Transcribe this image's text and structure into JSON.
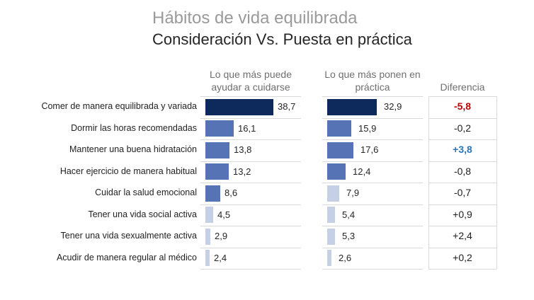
{
  "title": "Hábitos de vida equilibrada",
  "subtitle": "Consideración Vs. Puesta en práctica",
  "headers": {
    "col1": "Lo que más puede ayudar a cuidarse",
    "col2": "Lo que más ponen en práctica",
    "col3": "Diferencia"
  },
  "chart_data": {
    "type": "bar",
    "categories": [
      "Comer de manera equilibrada y variada",
      "Dormir las horas recomendadas",
      "Mantener una buena hidratación",
      "Hacer ejercicio de manera habitual",
      "Cuidar la salud emocional",
      "Tener una vida social activa",
      "Tener una vida sexualmente activa",
      "Acudir de manera regular al médico"
    ],
    "series": [
      {
        "name": "Lo que más puede ayudar a cuidarse",
        "values": [
          38.7,
          16.1,
          13.8,
          13.2,
          8.6,
          4.5,
          2.9,
          2.4
        ],
        "labels": [
          "38,7",
          "16,1",
          "13,8",
          "13,2",
          "8,6",
          "4,5",
          "2,9",
          "2,4"
        ]
      },
      {
        "name": "Lo que más ponen en práctica",
        "values": [
          32.9,
          15.9,
          17.6,
          12.4,
          7.9,
          5.4,
          5.3,
          2.6
        ],
        "labels": [
          "32,9",
          "15,9",
          "17,6",
          "12,4",
          "7,9",
          "5,4",
          "5,3",
          "2,6"
        ]
      }
    ],
    "differences": [
      "-5,8",
      "-0,2",
      "+3,8",
      "-0,8",
      "-0,7",
      "+0,9",
      "+2,4",
      "+0,2"
    ],
    "difference_highlight": [
      "neg",
      "",
      "pos",
      "",
      "",
      "",
      "",
      ""
    ],
    "colors": {
      "dark": "#0e2a5c",
      "medium": "#5673b6",
      "light": "#c5d0e6",
      "neg": "#c00000",
      "pos": "#2e75b6"
    }
  }
}
